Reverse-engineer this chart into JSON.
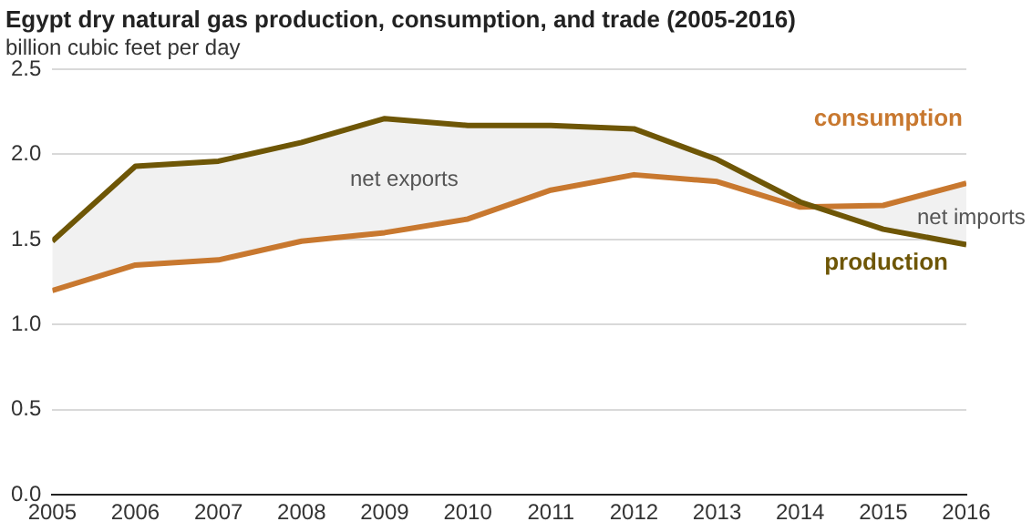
{
  "chart_data": {
    "type": "line",
    "title": "Egypt dry natural gas production, consumption, and trade (2005-2016)",
    "ylabel": "billion cubic feet per day",
    "x": [
      2005,
      2006,
      2007,
      2008,
      2009,
      2010,
      2011,
      2012,
      2013,
      2014,
      2015,
      2016
    ],
    "series": [
      {
        "name": "production",
        "color": "#6e5606",
        "values": [
          1.49,
          1.93,
          1.96,
          2.07,
          2.21,
          2.17,
          2.17,
          2.15,
          1.97,
          1.72,
          1.56,
          1.47
        ],
        "lower": [
          1.2,
          1.35,
          1.38,
          1.49,
          1.54,
          1.62,
          1.79,
          1.88,
          1.84,
          1.69,
          1.7,
          1.83
        ],
        "upper": [
          1.49,
          1.93,
          1.96,
          2.07,
          2.21,
          2.17,
          2.17,
          2.15,
          1.97,
          1.72,
          1.56,
          1.47
        ]
      },
      {
        "name": "consumption",
        "color": "#c8782f",
        "values": [
          1.2,
          1.35,
          1.38,
          1.49,
          1.54,
          1.62,
          1.79,
          1.88,
          1.84,
          1.69,
          1.7,
          1.83
        ]
      }
    ],
    "xlim": [
      2005,
      2016
    ],
    "xticks": [
      2005,
      2006,
      2007,
      2008,
      2009,
      2010,
      2011,
      2012,
      2013,
      2014,
      2015,
      2016
    ],
    "ylim": [
      0,
      2.5
    ],
    "yticks": [
      {
        "value": 0,
        "label": "0.0"
      },
      {
        "value": 0.5,
        "label": "0.5"
      },
      {
        "value": 1,
        "label": "1.0"
      },
      {
        "value": 1.5,
        "label": "1.5"
      },
      {
        "value": 2,
        "label": "2.0"
      },
      {
        "value": 2.5,
        "label": "2.5"
      }
    ],
    "annotations": [
      "net exports",
      "net imports"
    ],
    "grid": "y",
    "legend": false,
    "marker": "none",
    "line_style": "solid"
  }
}
